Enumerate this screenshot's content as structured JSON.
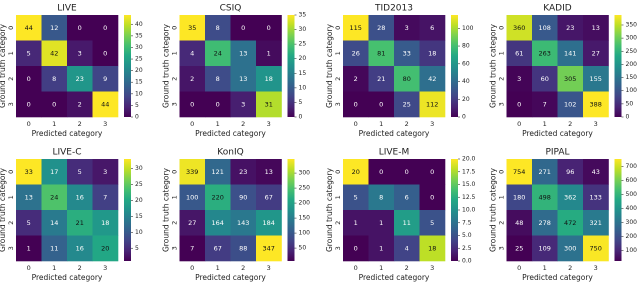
{
  "chart_data": [
    {
      "type": "heatmap",
      "title": "LIVE",
      "x_label": "Predicted category",
      "y_label": "Ground truth category",
      "x_categories": [
        "0",
        "1",
        "2",
        "3"
      ],
      "y_categories": [
        "0",
        "1",
        "2",
        "3"
      ],
      "colormap": "viridis",
      "values": [
        [
          44,
          12,
          0,
          0
        ],
        [
          5,
          42,
          3,
          0
        ],
        [
          0,
          8,
          23,
          9
        ],
        [
          0,
          0,
          2,
          44
        ]
      ],
      "zlim": [
        0,
        44
      ],
      "zticks": [
        0,
        5,
        10,
        15,
        20,
        25,
        30,
        35,
        40
      ]
    },
    {
      "type": "heatmap",
      "title": "CSIQ",
      "x_label": "Predicted category",
      "y_label": "Ground truth category",
      "x_categories": [
        "0",
        "1",
        "2",
        "3"
      ],
      "y_categories": [
        "0",
        "1",
        "2",
        "3"
      ],
      "colormap": "viridis",
      "values": [
        [
          35,
          8,
          0,
          0
        ],
        [
          4,
          24,
          13,
          1
        ],
        [
          2,
          8,
          13,
          18
        ],
        [
          0,
          0,
          3,
          31
        ]
      ],
      "zlim": [
        0,
        35
      ],
      "zticks": [
        0,
        5,
        10,
        15,
        20,
        25,
        30,
        35
      ]
    },
    {
      "type": "heatmap",
      "title": "TID2013",
      "x_label": "Predicted category",
      "y_label": "Ground truth category",
      "x_categories": [
        "0",
        "1",
        "2",
        "3"
      ],
      "y_categories": [
        "0",
        "1",
        "2",
        "3"
      ],
      "colormap": "viridis",
      "values": [
        [
          115,
          28,
          3,
          6
        ],
        [
          26,
          81,
          33,
          18
        ],
        [
          2,
          21,
          80,
          42
        ],
        [
          0,
          0,
          25,
          112
        ]
      ],
      "zlim": [
        0,
        115
      ],
      "zticks": [
        0,
        20,
        40,
        60,
        80,
        100
      ]
    },
    {
      "type": "heatmap",
      "title": "KADID",
      "x_label": "Predicted category",
      "y_label": "Ground truth category",
      "x_categories": [
        "0",
        "1",
        "2",
        "3"
      ],
      "y_categories": [
        "0",
        "1",
        "2",
        "3"
      ],
      "colormap": "viridis",
      "values": [
        [
          360,
          108,
          23,
          13
        ],
        [
          61,
          263,
          141,
          27
        ],
        [
          3,
          60,
          305,
          155
        ],
        [
          0,
          7,
          102,
          388
        ]
      ],
      "zlim": [
        0,
        388
      ],
      "zticks": [
        0,
        50,
        100,
        150,
        200,
        250,
        300,
        350
      ]
    },
    {
      "type": "heatmap",
      "title": "LIVE-C",
      "x_label": "Predicted category",
      "y_label": "Ground truth category",
      "x_categories": [
        "0",
        "1",
        "2",
        "3"
      ],
      "y_categories": [
        "0",
        "1",
        "2",
        "3"
      ],
      "colormap": "viridis",
      "values": [
        [
          33,
          17,
          5,
          3
        ],
        [
          13,
          24,
          16,
          7
        ],
        [
          5,
          14,
          21,
          18
        ],
        [
          1,
          11,
          16,
          20
        ]
      ],
      "zlim": [
        1,
        33
      ],
      "zticks": [
        5,
        10,
        15,
        20,
        25,
        30
      ]
    },
    {
      "type": "heatmap",
      "title": "KonIQ",
      "x_label": "Predicted category",
      "y_label": "Ground truth category",
      "x_categories": [
        "0",
        "1",
        "2",
        "3"
      ],
      "y_categories": [
        "0",
        "1",
        "2",
        "3"
      ],
      "colormap": "viridis",
      "values": [
        [
          339,
          121,
          23,
          13
        ],
        [
          100,
          220,
          90,
          67
        ],
        [
          27,
          164,
          143,
          184
        ],
        [
          7,
          67,
          88,
          347
        ]
      ],
      "zlim": [
        7,
        347
      ],
      "zticks": [
        50,
        100,
        150,
        200,
        250,
        300
      ]
    },
    {
      "type": "heatmap",
      "title": "LIVE-M",
      "x_label": "Predicted category",
      "y_label": "Ground truth category",
      "x_categories": [
        "0",
        "1",
        "2",
        "3"
      ],
      "y_categories": [
        "0",
        "1",
        "2",
        "3"
      ],
      "colormap": "viridis",
      "values": [
        [
          20,
          0,
          0,
          0
        ],
        [
          5,
          8,
          6,
          0
        ],
        [
          1,
          1,
          11,
          5
        ],
        [
          0,
          1,
          4,
          18
        ]
      ],
      "zlim": [
        0,
        20
      ],
      "zticks": [
        {
          "value": 0,
          "label": "0.0"
        },
        {
          "value": 2.5,
          "label": "2.5"
        },
        {
          "value": 5,
          "label": "5.0"
        },
        {
          "value": 7.5,
          "label": "7.5"
        },
        {
          "value": 10,
          "label": "10.0"
        },
        {
          "value": 12.5,
          "label": "12.5"
        },
        {
          "value": 15,
          "label": "15.0"
        },
        {
          "value": 17.5,
          "label": "17.5"
        },
        {
          "value": 20,
          "label": "20.0"
        }
      ]
    },
    {
      "type": "heatmap",
      "title": "PIPAL",
      "x_label": "Predicted category",
      "y_label": "Ground truth category",
      "x_categories": [
        "0",
        "1",
        "2",
        "3"
      ],
      "y_categories": [
        "0",
        "1",
        "2",
        "3"
      ],
      "colormap": "viridis",
      "values": [
        [
          754,
          271,
          96,
          43
        ],
        [
          180,
          498,
          362,
          133
        ],
        [
          48,
          278,
          472,
          321
        ],
        [
          25,
          109,
          300,
          750
        ]
      ],
      "zlim": [
        25,
        754
      ],
      "zticks": [
        100,
        200,
        300,
        400,
        500,
        600,
        700
      ]
    }
  ]
}
